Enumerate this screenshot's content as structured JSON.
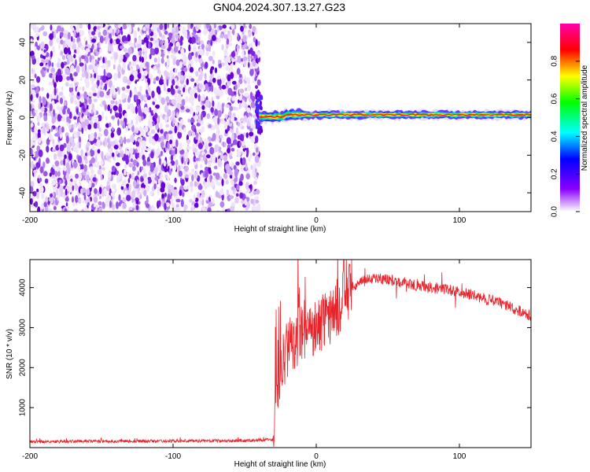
{
  "title": "GN04.2024.307.13.27.G23",
  "colors": {
    "snr_line": "#e8232a",
    "noise_dots": "#8a2be2",
    "axis": "#000000"
  },
  "chart_data": [
    {
      "type": "heatmap",
      "xlabel": "Height of straight line (km)",
      "ylabel": "Frequency (Hz)",
      "xlim": [
        -200,
        150
      ],
      "ylim": [
        -50,
        50
      ],
      "xticks": [
        -200,
        -100,
        0,
        100
      ],
      "yticks": [
        -40,
        -20,
        0,
        20,
        40
      ],
      "noise_region": {
        "x": [
          -200,
          -40
        ],
        "y": [
          -50,
          50
        ]
      },
      "signal_band": {
        "x": [
          -40,
          150
        ],
        "y": [
          -3,
          5
        ],
        "center_frequency": 1.5
      },
      "colorbar": {
        "label": "Normalized spectral amplitude",
        "range": [
          0,
          1
        ],
        "ticks": [
          "0.0",
          "0.2",
          "0.4",
          "0.6",
          "0.8"
        ],
        "colormap": [
          "#ffffff",
          "#8a00ff",
          "#0000ff",
          "#00ffff",
          "#00ff00",
          "#ffff00",
          "#ff0000",
          "#ff00aa"
        ]
      }
    },
    {
      "type": "line",
      "xlabel": "Height of straight line (km)",
      "ylabel": "SNR (10 * v/v)",
      "xlim": [
        -200,
        150
      ],
      "ylim": [
        0,
        4700
      ],
      "xticks": [
        -200,
        -100,
        0,
        100
      ],
      "yticks": [
        1000,
        2000,
        3000,
        4000
      ],
      "series": [
        {
          "x": [
            -200,
            -150,
            -100,
            -50,
            -30,
            -28,
            -25,
            -20,
            -15,
            -10,
            -5,
            0,
            5,
            10,
            15,
            20,
            25,
            30,
            35,
            40,
            50,
            60,
            70,
            80,
            90,
            100,
            110,
            120,
            130,
            140,
            150
          ],
          "y": [
            150,
            160,
            165,
            175,
            200,
            1300,
            2000,
            2500,
            2700,
            2900,
            3100,
            2900,
            3200,
            3300,
            3500,
            3800,
            4000,
            4100,
            4200,
            4250,
            4200,
            4150,
            4050,
            4000,
            3950,
            3900,
            3800,
            3700,
            3600,
            3450,
            3300
          ]
        }
      ]
    }
  ]
}
